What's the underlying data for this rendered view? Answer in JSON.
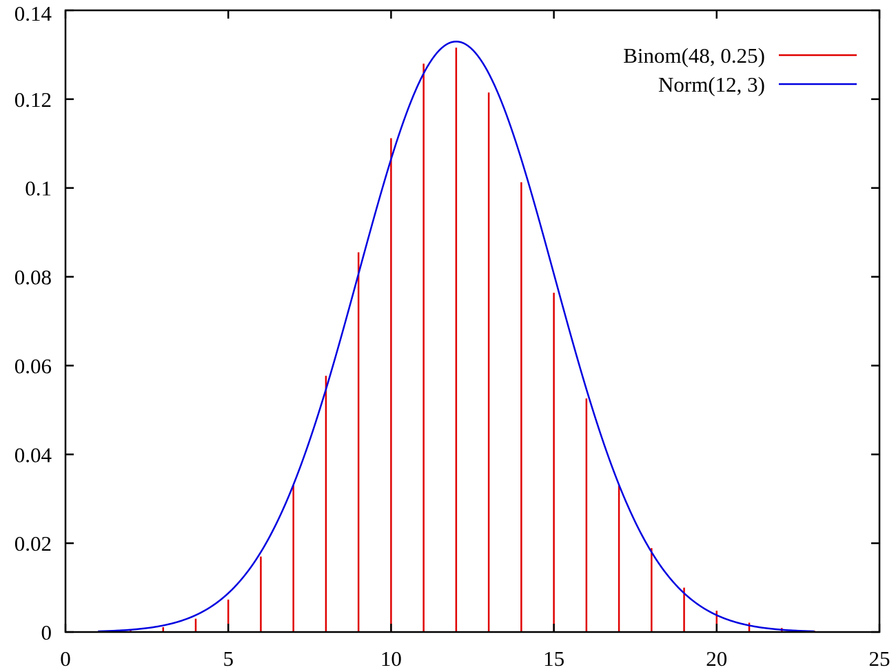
{
  "chart_data": {
    "type": "bar",
    "xlim": [
      0,
      25
    ],
    "ylim": [
      0,
      0.14
    ],
    "xticks": [
      "0",
      "5",
      "10",
      "15",
      "20",
      "25"
    ],
    "yticks": [
      "0",
      "0.02",
      "0.04",
      "0.06",
      "0.08",
      "0.1",
      "0.12",
      "0.14"
    ],
    "legend_position": "top-right",
    "grid": false,
    "series": [
      {
        "name": "Binom(48, 0.25)",
        "kind": "impulses",
        "color": "#e00000",
        "x": [
          1,
          2,
          3,
          4,
          5,
          6,
          7,
          8,
          9,
          10,
          11,
          12,
          13,
          14,
          15,
          16,
          17,
          18,
          19,
          20,
          21,
          22,
          23
        ],
        "values": [
          0.0001,
          0.0003,
          0.0011,
          0.003,
          0.0073,
          0.017,
          0.0331,
          0.0577,
          0.0855,
          0.1112,
          0.128,
          0.1316,
          0.1215,
          0.1013,
          0.0764,
          0.0526,
          0.033,
          0.0189,
          0.01,
          0.0048,
          0.0021,
          0.0009,
          0.0003
        ]
      },
      {
        "name": "Norm(12, 3)",
        "kind": "curve",
        "color": "#0000e0",
        "mean": 12,
        "sd": 3,
        "x_range": [
          1,
          23
        ]
      }
    ]
  }
}
